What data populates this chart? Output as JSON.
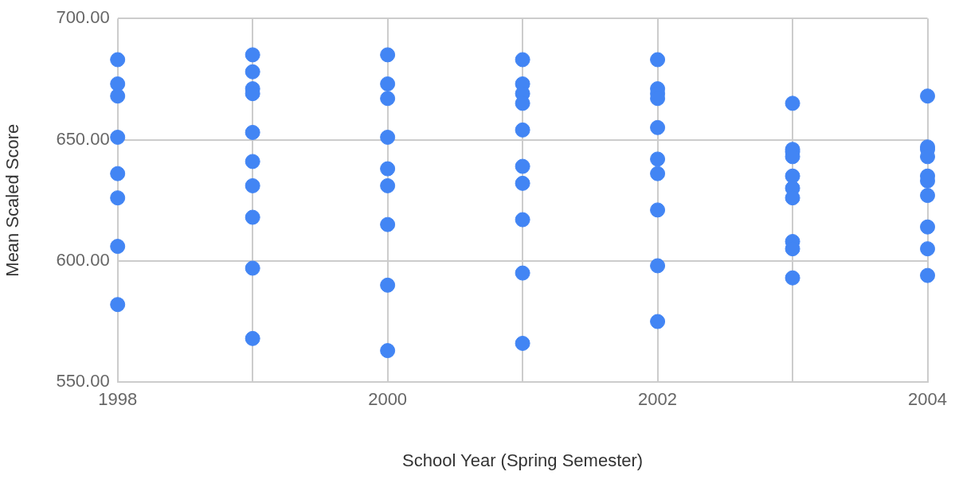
{
  "chart_data": {
    "type": "scatter",
    "xlabel": "School Year (Spring Semester)",
    "ylabel": "Mean Scaled Score",
    "x": [
      1998,
      1998,
      1998,
      1998,
      1998,
      1998,
      1998,
      1998,
      1999,
      1999,
      1999,
      1999,
      1999,
      1999,
      1999,
      1999,
      1999,
      1999,
      2000,
      2000,
      2000,
      2000,
      2000,
      2000,
      2000,
      2000,
      2000,
      2001,
      2001,
      2001,
      2001,
      2001,
      2001,
      2001,
      2001,
      2001,
      2001,
      2002,
      2002,
      2002,
      2002,
      2002,
      2002,
      2002,
      2002,
      2002,
      2002,
      2003,
      2003,
      2003,
      2003,
      2003,
      2003,
      2003,
      2003,
      2003,
      2003,
      2004,
      2004,
      2004,
      2004,
      2004,
      2004,
      2004,
      2004,
      2004,
      2004
    ],
    "series": [
      {
        "color": "#4285f4",
        "values": [
          683,
          673,
          668,
          651,
          636,
          626,
          606,
          582,
          685,
          678,
          671,
          669,
          653,
          641,
          631,
          618,
          597,
          568,
          685,
          673,
          667,
          651,
          638,
          631,
          615,
          590,
          563,
          683,
          673,
          669,
          665,
          654,
          639,
          632,
          617,
          595,
          566,
          683,
          671,
          669,
          667,
          655,
          642,
          636,
          621,
          598,
          575,
          665,
          646,
          645,
          643,
          635,
          630,
          626,
          608,
          605,
          593,
          668,
          647,
          646,
          643,
          635,
          633,
          627,
          614,
          605,
          594
        ]
      }
    ],
    "xlim": [
      1998,
      2004
    ],
    "ylim": [
      550,
      700
    ],
    "xticks": [
      1998,
      {
        "value": 1999,
        "label": null
      },
      2000,
      {
        "value": 2001,
        "label": null
      },
      2002,
      {
        "value": 2003,
        "label": null
      },
      2004
    ],
    "yticks": [
      {
        "value": 550,
        "label": "550.00"
      },
      {
        "value": 600,
        "label": "600.00"
      },
      {
        "value": 650,
        "label": "650.00"
      },
      {
        "value": 700,
        "label": "700.00"
      }
    ],
    "grid": true,
    "marker": "circle"
  }
}
